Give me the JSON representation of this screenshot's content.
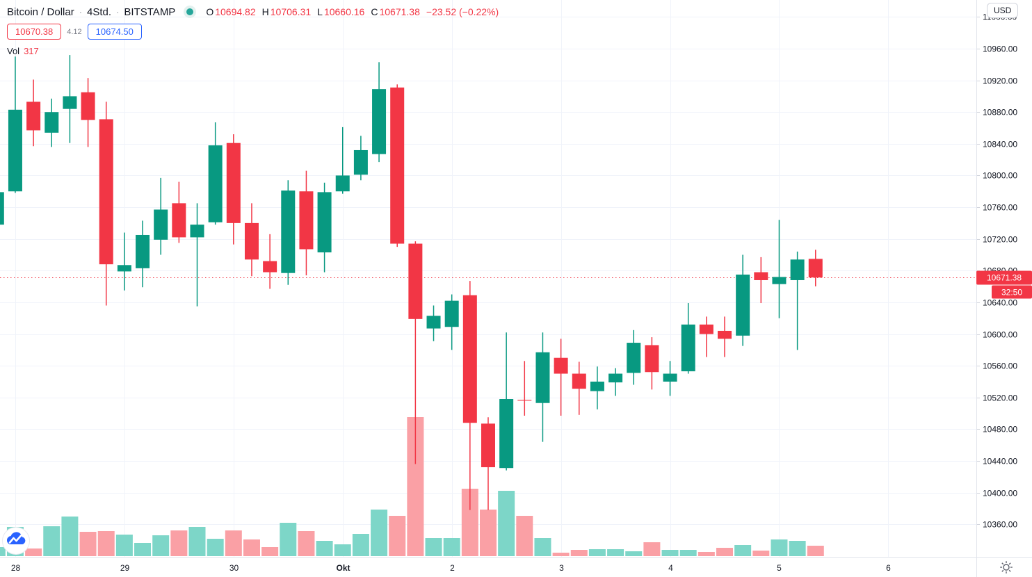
{
  "header": {
    "symbol": "Bitcoin / Dollar",
    "separator": "·",
    "interval": "4Std.",
    "exchange": "BITSTAMP",
    "ohlc": {
      "o_label": "O",
      "o": "10694.82",
      "h_label": "H",
      "h": "10706.31",
      "l_label": "L",
      "l": "10660.16",
      "c_label": "C",
      "c": "10671.38",
      "change": "−23.52 (−0.22%)"
    },
    "bid": "10670.38",
    "spread": "4.12",
    "ask": "10674.50",
    "vol_label": "Vol",
    "vol_value": "317"
  },
  "price_scale": {
    "unit_button": "USD",
    "current_price_label": "10671.38",
    "countdown": "32:50"
  },
  "colors": {
    "up": "#089981",
    "down": "#f23645",
    "vol_up": "#7dd6c8",
    "vol_down": "#faa0a5",
    "grid": "#f0f3fa",
    "axis_border": "#e0e3eb",
    "axis_text": "#131722",
    "muted_text": "#787b86",
    "accent_blue": "#2962ff",
    "badge": "#f23645",
    "status_dot": "#26a69a"
  },
  "chart_data": {
    "type": "candlestick+volume",
    "title": "Bitcoin / Dollar · 4Std. · BITSTAMP",
    "price_ticks": {
      "start": 10360,
      "end": 11000,
      "step": 40
    },
    "current_price": 10671.38,
    "grid": true,
    "day_ticks": [
      {
        "label": "28",
        "index": 1,
        "bold": false
      },
      {
        "label": "29",
        "index": 7,
        "bold": false
      },
      {
        "label": "30",
        "index": 13,
        "bold": false
      },
      {
        "label": "Okt",
        "index": 19,
        "bold": true
      },
      {
        "label": "2",
        "index": 25,
        "bold": false
      },
      {
        "label": "3",
        "index": 31,
        "bold": false
      },
      {
        "label": "4",
        "index": 37,
        "bold": false
      },
      {
        "label": "5",
        "index": 43,
        "bold": false
      },
      {
        "label": "6",
        "index": 49,
        "bold": false
      }
    ],
    "columns": [
      "open",
      "high",
      "low",
      "close",
      "volume_rel"
    ],
    "candles": [
      [
        10738,
        10780,
        10736,
        10779,
        13
      ],
      [
        10780,
        10950,
        10778,
        10883,
        42
      ],
      [
        10893,
        10921,
        10837,
        10857,
        11
      ],
      [
        10854,
        10897,
        10836,
        10880,
        43
      ],
      [
        10884,
        10952,
        10841,
        10900,
        57
      ],
      [
        10905,
        10923,
        10836,
        10870,
        35
      ],
      [
        10871,
        10893,
        10636,
        10688,
        36
      ],
      [
        10679,
        10728,
        10655,
        10687,
        31
      ],
      [
        10683,
        10743,
        10659,
        10725,
        19
      ],
      [
        10719,
        10797,
        10700,
        10757,
        30
      ],
      [
        10765,
        10792,
        10715,
        10722,
        37
      ],
      [
        10722,
        10765,
        10635,
        10738,
        42
      ],
      [
        10741,
        10867,
        10738,
        10838,
        25
      ],
      [
        10841,
        10852,
        10713,
        10740,
        37
      ],
      [
        10740,
        10765,
        10673,
        10694,
        24
      ],
      [
        10692,
        10726,
        10657,
        10678,
        13
      ],
      [
        10677,
        10794,
        10662,
        10781,
        48
      ],
      [
        10780,
        10806,
        10674,
        10707,
        36
      ],
      [
        10703,
        10791,
        10678,
        10779,
        22
      ],
      [
        10780,
        10861,
        10777,
        10800,
        17
      ],
      [
        10801,
        10850,
        10794,
        10832,
        32
      ],
      [
        10827,
        10943,
        10817,
        10909,
        67
      ],
      [
        10911,
        10915,
        10710,
        10714,
        58
      ],
      [
        10714,
        10717,
        10436,
        10619,
        200
      ],
      [
        10607,
        10636,
        10591,
        10623,
        26
      ],
      [
        10609,
        10650,
        10580,
        10642,
        26
      ],
      [
        10649,
        10667,
        10378,
        10488,
        97
      ],
      [
        10487,
        10495,
        10378,
        10432,
        67
      ],
      [
        10431,
        10602,
        10428,
        10518,
        94
      ],
      [
        10517,
        10566,
        10497,
        10516,
        58
      ],
      [
        10513,
        10602,
        10464,
        10577,
        26
      ],
      [
        10570,
        10594,
        10497,
        10550,
        5
      ],
      [
        10550,
        10565,
        10498,
        10531,
        9
      ],
      [
        10528,
        10559,
        10505,
        10540,
        10
      ],
      [
        10539,
        10557,
        10522,
        10550,
        10
      ],
      [
        10551,
        10605,
        10536,
        10589,
        7
      ],
      [
        10586,
        10596,
        10530,
        10552,
        20
      ],
      [
        10540,
        10566,
        10522,
        10550,
        9
      ],
      [
        10553,
        10639,
        10550,
        10612,
        9
      ],
      [
        10612,
        10622,
        10571,
        10600,
        6
      ],
      [
        10604,
        10622,
        10571,
        10594,
        12
      ],
      [
        10598,
        10700,
        10585,
        10675,
        16
      ],
      [
        10678,
        10697,
        10639,
        10668,
        8
      ],
      [
        10663,
        10744,
        10620,
        10672,
        24
      ],
      [
        10668,
        10704,
        10580,
        10694,
        22
      ],
      [
        10694.82,
        10706.31,
        10660.16,
        10671.38,
        15
      ]
    ]
  }
}
